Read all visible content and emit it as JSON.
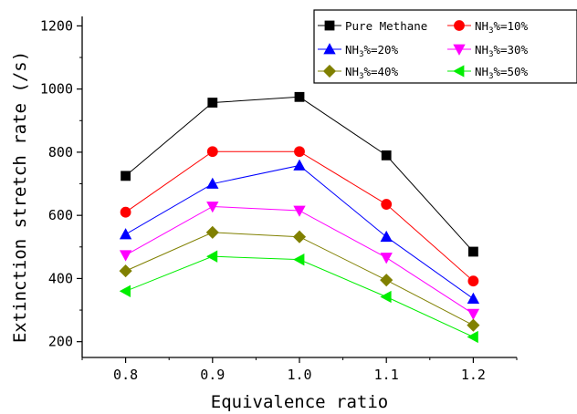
{
  "chart_data": {
    "type": "line",
    "xlabel": "Equivalence ratio",
    "ylabel": "Extinction stretch rate (/s)",
    "x": [
      0.8,
      0.9,
      1.0,
      1.1,
      1.2
    ],
    "x_ticks": [
      "0.8",
      "0.9",
      "1.0",
      "1.1",
      "1.2"
    ],
    "xlim": [
      0.75,
      1.25
    ],
    "y_ticks": [
      200,
      400,
      600,
      800,
      1000,
      1200
    ],
    "ylim": [
      150,
      1230
    ],
    "grid": false,
    "legend_position": "top-right",
    "series": [
      {
        "name": "Pure Methane",
        "name_parts": [
          [
            "n",
            "Pure Methane"
          ]
        ],
        "color": "#000000",
        "marker": "square",
        "values": [
          725,
          957,
          975,
          790,
          485
        ]
      },
      {
        "name": "NH3%=10%",
        "name_parts": [
          [
            "n",
            "NH"
          ],
          [
            "s",
            "3"
          ],
          [
            "n",
            "%=10%"
          ]
        ],
        "color": "#ff0000",
        "marker": "circle",
        "values": [
          610,
          802,
          802,
          635,
          392
        ]
      },
      {
        "name": "NH3%=20%",
        "name_parts": [
          [
            "n",
            "NH"
          ],
          [
            "s",
            "3"
          ],
          [
            "n",
            "%=20%"
          ]
        ],
        "color": "#0000ff",
        "marker": "triangle-up",
        "values": [
          540,
          700,
          758,
          532,
          336
        ]
      },
      {
        "name": "NH3%=30%",
        "name_parts": [
          [
            "n",
            "NH"
          ],
          [
            "s",
            "3"
          ],
          [
            "n",
            "%=30%"
          ]
        ],
        "color": "#ff00ff",
        "marker": "triangle-down",
        "values": [
          474,
          628,
          615,
          466,
          288
        ]
      },
      {
        "name": "NH3%=40%",
        "name_parts": [
          [
            "n",
            "NH"
          ],
          [
            "s",
            "3"
          ],
          [
            "n",
            "%=40%"
          ]
        ],
        "color": "#808000",
        "marker": "diamond",
        "values": [
          424,
          546,
          532,
          395,
          252
        ]
      },
      {
        "name": "NH3%=50%",
        "name_parts": [
          [
            "n",
            "NH"
          ],
          [
            "s",
            "3"
          ],
          [
            "n",
            "%=50%"
          ]
        ],
        "color": "#00ee00",
        "marker": "triangle-left",
        "values": [
          360,
          470,
          460,
          342,
          215
        ]
      }
    ]
  }
}
